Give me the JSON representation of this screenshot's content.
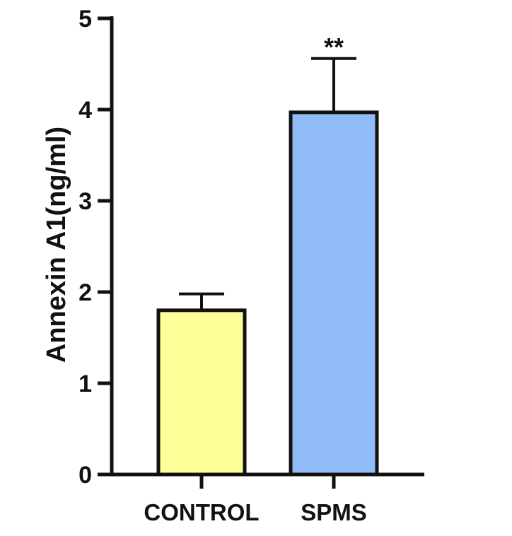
{
  "chart_data": {
    "type": "bar",
    "title": "",
    "xlabel": "",
    "ylabel": "Annexin A1(ng/ml)",
    "ylim": [
      0,
      5
    ],
    "yticks": [
      0,
      1,
      2,
      3,
      4,
      5
    ],
    "grid": false,
    "categories": [
      "CONTROL",
      "SPMS"
    ],
    "values": [
      1.8,
      3.97
    ],
    "error_upper": [
      1.98,
      4.56
    ],
    "colors": [
      "#ffff99",
      "#8fbbf7"
    ],
    "annotations": [
      "",
      "**"
    ]
  }
}
